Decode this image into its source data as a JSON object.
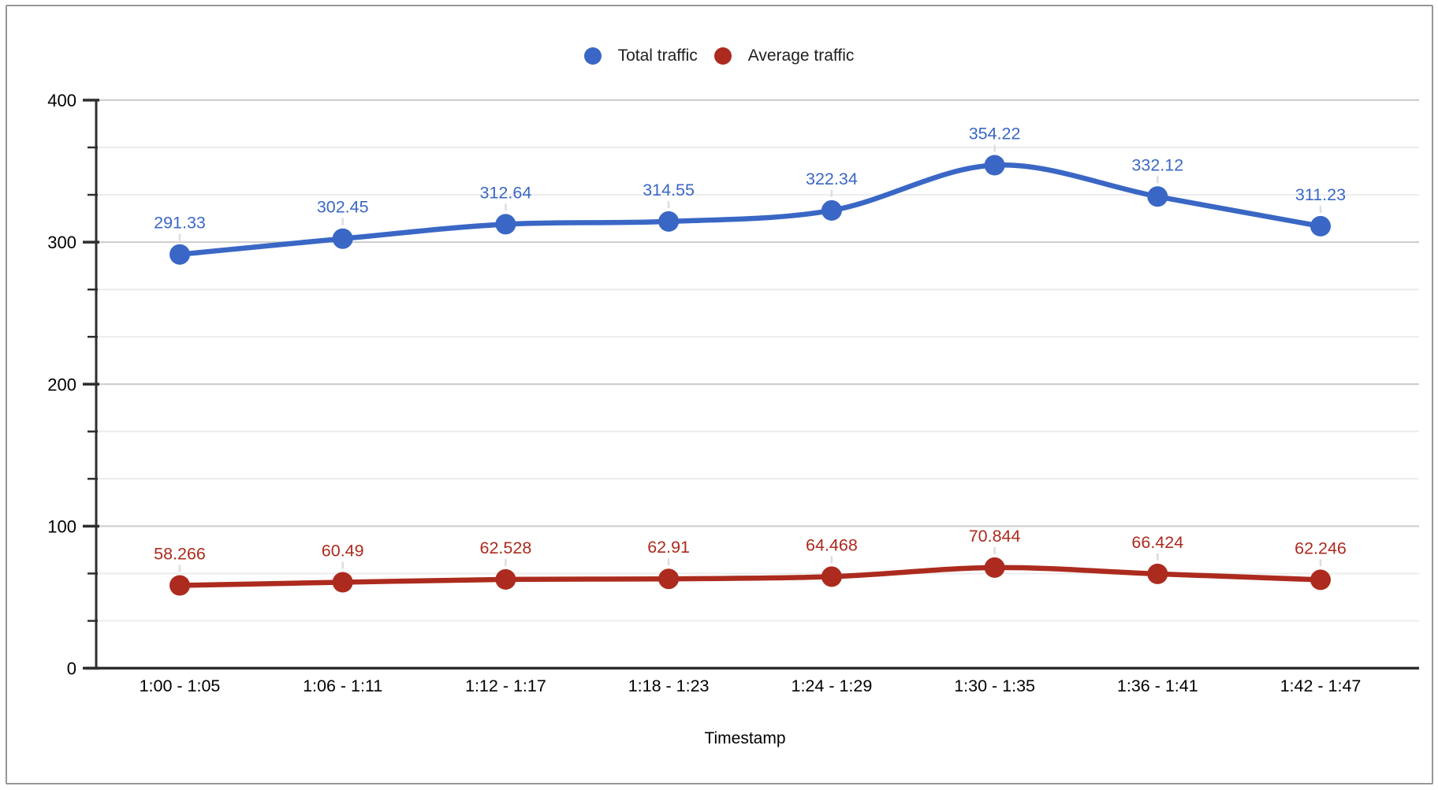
{
  "chart_data": {
    "type": "line",
    "title": "",
    "categories": [
      "1:00 - 1:05",
      "1:06 - 1:11",
      "1:12 - 1:17",
      "1:18 - 1:23",
      "1:24 - 1:29",
      "1:30 - 1:35",
      "1:36 - 1:41",
      "1:42 - 1:47"
    ],
    "series": [
      {
        "name": "Total traffic",
        "color": "#3A67C5",
        "values": [
          291.33,
          302.45,
          312.64,
          314.55,
          322.34,
          354.22,
          332.12,
          311.23
        ]
      },
      {
        "name": "Average traffic",
        "color": "#AC2B1E",
        "values": [
          58.266,
          60.49,
          62.528,
          62.91,
          64.468,
          70.844,
          66.424,
          62.246
        ]
      }
    ],
    "xlabel": "Timestamp",
    "ylabel": "",
    "ylim": [
      0,
      400
    ],
    "yticks": [
      0,
      100,
      200,
      300,
      400
    ],
    "minor_gridlines_per_interval": 2,
    "grid": true,
    "legend_position": "top",
    "line_smoothing": true,
    "point_labels_visible": true
  },
  "style": {
    "axis_color": "#2e2e2e",
    "major_gridline_color": "#cccccc",
    "minor_gridline_color": "#ececec",
    "label_leader_color": "#dddddd",
    "tick_label_color": "#000000",
    "frame_border_color": "#979797"
  }
}
